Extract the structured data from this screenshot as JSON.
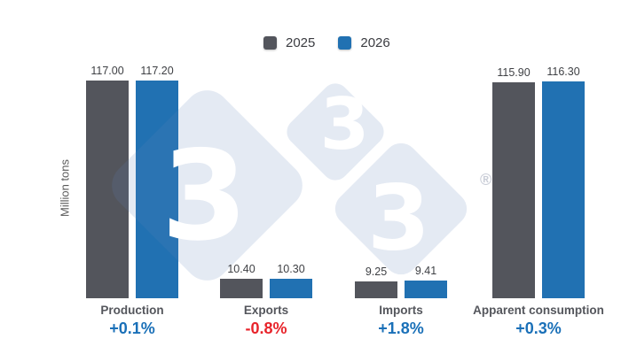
{
  "chart_data": {
    "type": "bar",
    "categories": [
      "Production",
      "Exports",
      "Imports",
      "Apparent consumption"
    ],
    "series": [
      {
        "name": "2025",
        "color": "#53555c",
        "values": [
          117.0,
          10.4,
          9.25,
          115.9
        ],
        "labels": [
          "117.00",
          "10.40",
          "9.25",
          "115.90"
        ]
      },
      {
        "name": "2026",
        "color": "#2171b2",
        "values": [
          117.2,
          10.3,
          9.41,
          116.3
        ],
        "labels": [
          "117.20",
          "10.30",
          "9.41",
          "116.30"
        ]
      }
    ],
    "changes": [
      {
        "label": "+0.1%",
        "color": "#1a70b8"
      },
      {
        "label": "-0.8%",
        "color": "#e8242b"
      },
      {
        "label": "+1.8%",
        "color": "#1a70b8"
      },
      {
        "label": "+0.3%",
        "color": "#1a70b8"
      }
    ],
    "ylabel": "Million tons",
    "ylim": [
      0,
      120
    ],
    "grid": false,
    "legend_position": "top-center",
    "value_labels_shown": true
  },
  "watermark": {
    "diamond_glyph": "3",
    "registered_mark": "®"
  }
}
